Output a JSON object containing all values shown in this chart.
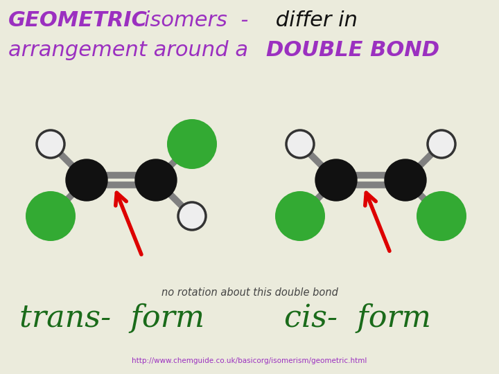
{
  "bg_color": "#ebebdc",
  "label_color_purple": "#9b30c0",
  "label_color_black": "#111111",
  "label_color_dark_green": "#1a6b1a",
  "bond_color": "#808080",
  "carbon_color": "#111111",
  "green_color": "#33aa33",
  "white_color": "#eeeeee",
  "arrow_color": "#dd0000",
  "no_rotation_text": "no rotation about this double bond",
  "trans_label": "trans-  form",
  "cis_label": "cis-  form",
  "url": "http://www.chemguide.co.uk/basicorg/isomerism/geometric.html"
}
